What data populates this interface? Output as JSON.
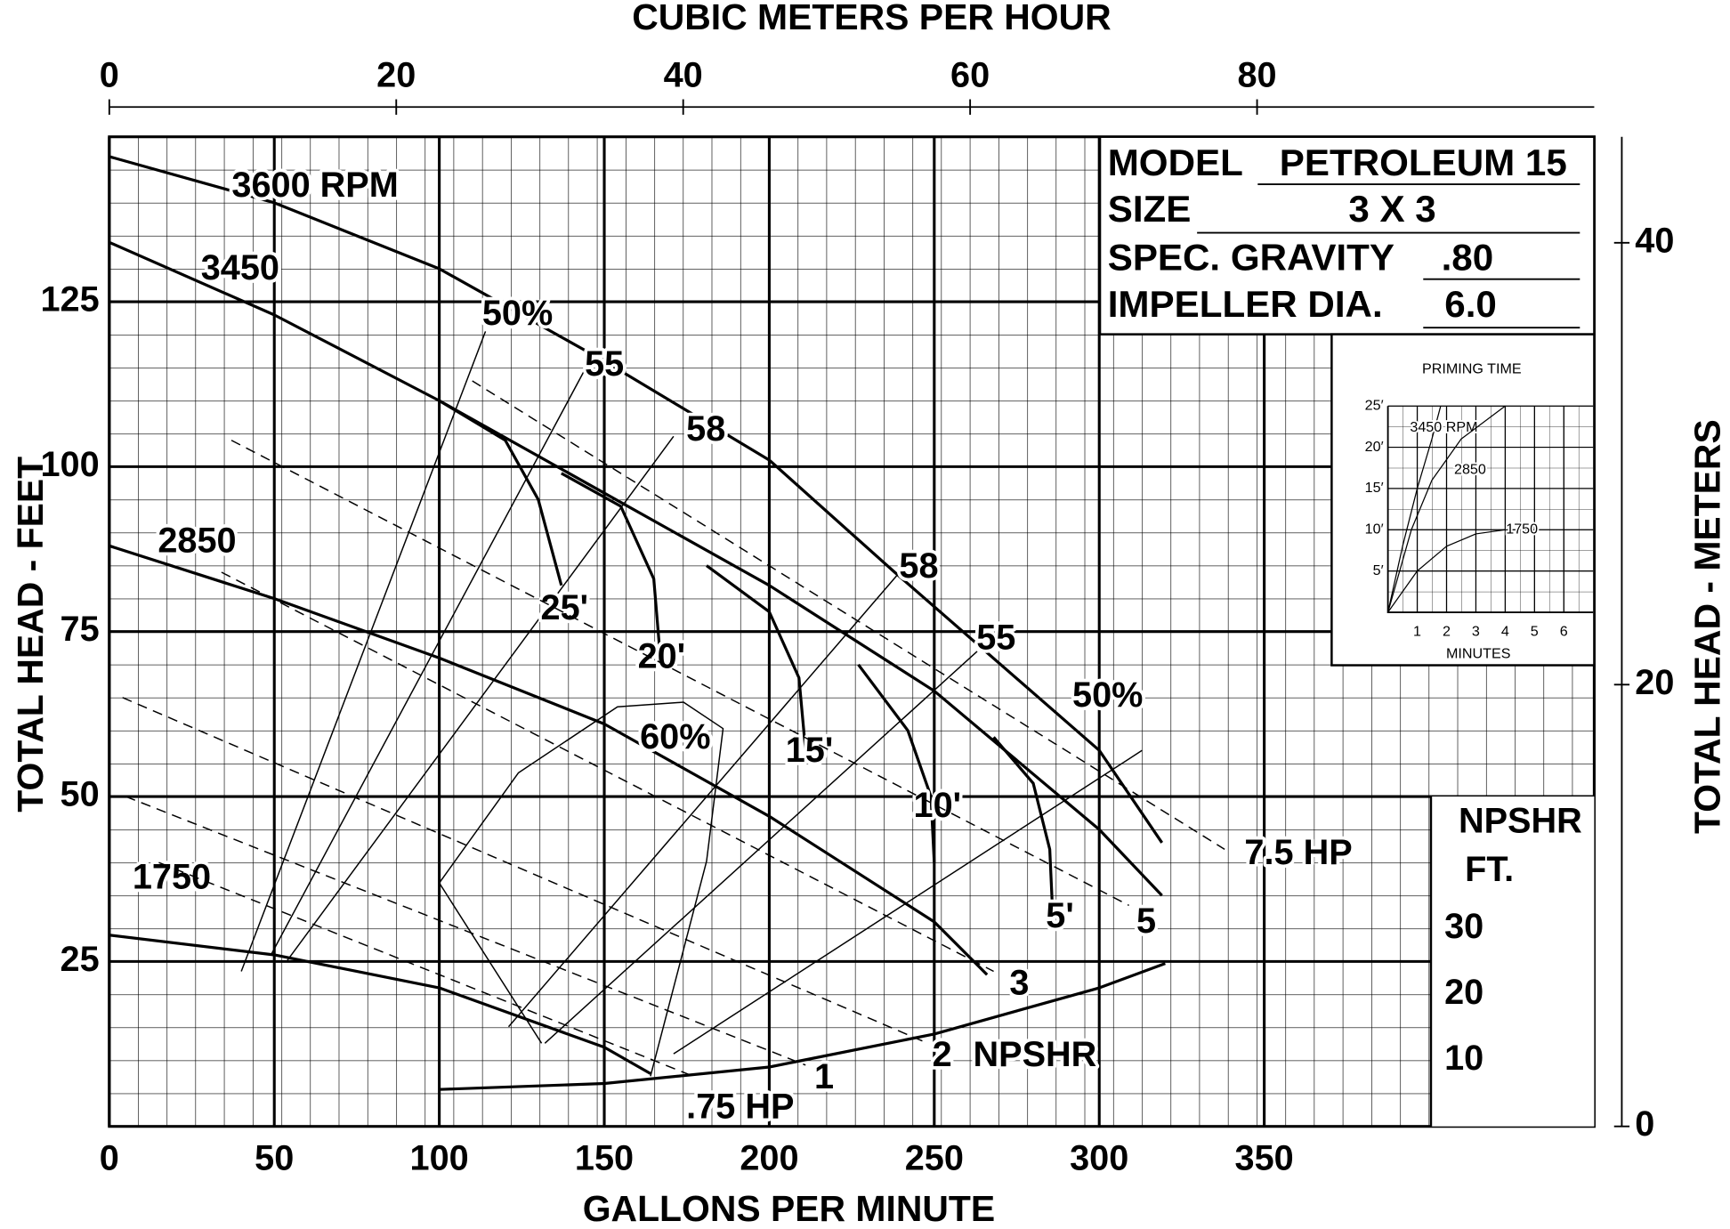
{
  "chart_data": [
    {
      "type": "line",
      "x_label": "GALLONS PER MINUTE",
      "y_label": "TOTAL HEAD - FEET",
      "x2_label": "CUBIC METERS PER HOUR",
      "y2_label": "TOTAL HEAD - METERS",
      "xlim": [
        0,
        450
      ],
      "ylim": [
        0,
        150
      ],
      "xticks": [
        0,
        50,
        100,
        150,
        200,
        250,
        300,
        350
      ],
      "yticks": [
        25,
        50,
        75,
        100,
        125
      ],
      "x2lim": [
        0,
        103.5
      ],
      "x2ticks": [
        0,
        20,
        40,
        60,
        80
      ],
      "y2lim": [
        0,
        44.8
      ],
      "y2ticks": [
        0,
        20,
        40
      ],
      "npshr_label": [
        "NPSHR",
        "FT."
      ],
      "npshr_ticks": [
        10,
        20,
        30
      ],
      "grid": true,
      "color": "#000000",
      "series": [
        {
          "name": "3600 RPM",
          "style": "bold",
          "x": [
            0,
            50,
            100,
            150,
            200,
            238,
            300,
            319
          ],
          "values": [
            147,
            140,
            130,
            116,
            101,
            84,
            57,
            43
          ]
        },
        {
          "name": "3450",
          "style": "bold",
          "x": [
            0,
            50,
            100,
            150,
            200,
            250,
            300,
            319
          ],
          "values": [
            134,
            123,
            110,
            96,
            82,
            66,
            45,
            35
          ]
        },
        {
          "name": "2850",
          "style": "bold",
          "x": [
            0,
            50,
            100,
            150,
            200,
            250,
            266
          ],
          "values": [
            88,
            80,
            71,
            61,
            47,
            31,
            23
          ]
        },
        {
          "name": "1750",
          "style": "bold",
          "x": [
            0,
            50,
            100,
            150,
            164
          ],
          "values": [
            29,
            26,
            21,
            12,
            8
          ]
        },
        {
          "name": "50%",
          "style": "thin",
          "x": [
            40,
            114
          ],
          "values": [
            23.5,
            120.5
          ]
        },
        {
          "name": "55",
          "style": "thin",
          "x": [
            49,
            144
          ],
          "values": [
            26,
            114.6
          ]
        },
        {
          "name": "58",
          "style": "thin",
          "x": [
            54,
            171
          ],
          "values": [
            25.2,
            104.6
          ]
        },
        {
          "name": "60%",
          "style": "thin",
          "x": [
            131,
            100,
            124,
            154,
            174,
            186,
            181,
            164
          ],
          "values": [
            12.6,
            36.9,
            53.6,
            63.6,
            64.3,
            60.3,
            40.2,
            7.6
          ]
        },
        {
          "name": "58",
          "style": "thin",
          "x": [
            121,
            239
          ],
          "values": [
            15.1,
            83.7
          ]
        },
        {
          "name": "55",
          "style": "thin",
          "x": [
            132,
            263
          ],
          "values": [
            12.6,
            72
          ]
        },
        {
          "name": "50%",
          "style": "thin",
          "x": [
            171,
            313
          ],
          "values": [
            11,
            57
          ]
        },
        {
          "name": "25'",
          "style": "bold",
          "x": [
            100,
            120,
            130,
            137
          ],
          "values": [
            110,
            104,
            95,
            82
          ]
        },
        {
          "name": "20'",
          "style": "bold",
          "x": [
            137,
            155,
            165,
            167
          ],
          "values": [
            99,
            94,
            83,
            71
          ]
        },
        {
          "name": "15'",
          "style": "bold",
          "x": [
            181,
            200,
            209,
            211
          ],
          "values": [
            85,
            78,
            68,
            57
          ]
        },
        {
          "name": "10'",
          "style": "bold",
          "x": [
            227,
            242,
            249,
            250
          ],
          "values": [
            70,
            60,
            50,
            40
          ]
        },
        {
          "name": "5'",
          "style": "bold",
          "x": [
            268,
            280,
            285,
            286
          ],
          "values": [
            59,
            52,
            42,
            31
          ]
        },
        {
          "name": "7.5 HP",
          "style": "dashed",
          "x": [
            110,
            338
          ],
          "values": [
            113,
            42
          ]
        },
        {
          "name": "5",
          "style": "dashed",
          "x": [
            37,
            309
          ],
          "values": [
            104,
            33.5
          ]
        },
        {
          "name": "3",
          "style": "dashed",
          "x": [
            34,
            268
          ],
          "values": [
            84,
            23.5
          ]
        },
        {
          "name": "2",
          "style": "dashed",
          "x": [
            4,
            248
          ],
          "values": [
            65,
            12.6
          ]
        },
        {
          "name": "1",
          "style": "dashed",
          "x": [
            5,
            211
          ],
          "values": [
            50,
            9.3
          ]
        },
        {
          "name": ".75 HP",
          "style": "dashed",
          "x": [
            15,
            177
          ],
          "values": [
            40,
            7.6
          ]
        },
        {
          "name": "NPSHR",
          "style": "bold",
          "x": [
            100,
            150,
            200,
            250,
            300,
            320
          ],
          "values": [
            5.6,
            6.5,
            9,
            14,
            21,
            24.7
          ]
        }
      ]
    },
    {
      "type": "line",
      "title": "PRIMING TIME",
      "x_label": "MINUTES",
      "xlim": [
        0,
        7
      ],
      "ylim": [
        0,
        25
      ],
      "xticks": [
        1,
        2,
        3,
        4,
        5,
        6
      ],
      "yticks": [
        {
          "value": 5,
          "label": "5′"
        },
        {
          "value": 10,
          "label": "10′"
        },
        {
          "value": 15,
          "label": "15′"
        },
        {
          "value": 20,
          "label": "20′"
        },
        {
          "value": 25,
          "label": "25′"
        }
      ],
      "grid": true,
      "color": "#000000",
      "series": [
        {
          "name": "3450 RPM",
          "x": [
            0,
            0.5,
            1,
            1.5,
            1.8
          ],
          "values": [
            0,
            8,
            15,
            21,
            25
          ]
        },
        {
          "name": "2850",
          "x": [
            0,
            0.8,
            1.5,
            2.5,
            4
          ],
          "values": [
            0,
            10,
            16,
            21,
            25
          ]
        },
        {
          "name": "1750",
          "x": [
            0,
            1,
            2,
            3,
            4
          ],
          "values": [
            0,
            5,
            8,
            9.5,
            10
          ]
        }
      ]
    }
  ],
  "spec_table": {
    "rows": [
      [
        "MODEL",
        "PETROLEUM 15"
      ],
      [
        "SIZE",
        "3 X 3"
      ],
      [
        "SPEC. GRAVITY",
        ".80"
      ],
      [
        "IMPELLER DIA.",
        "6.0"
      ]
    ]
  }
}
